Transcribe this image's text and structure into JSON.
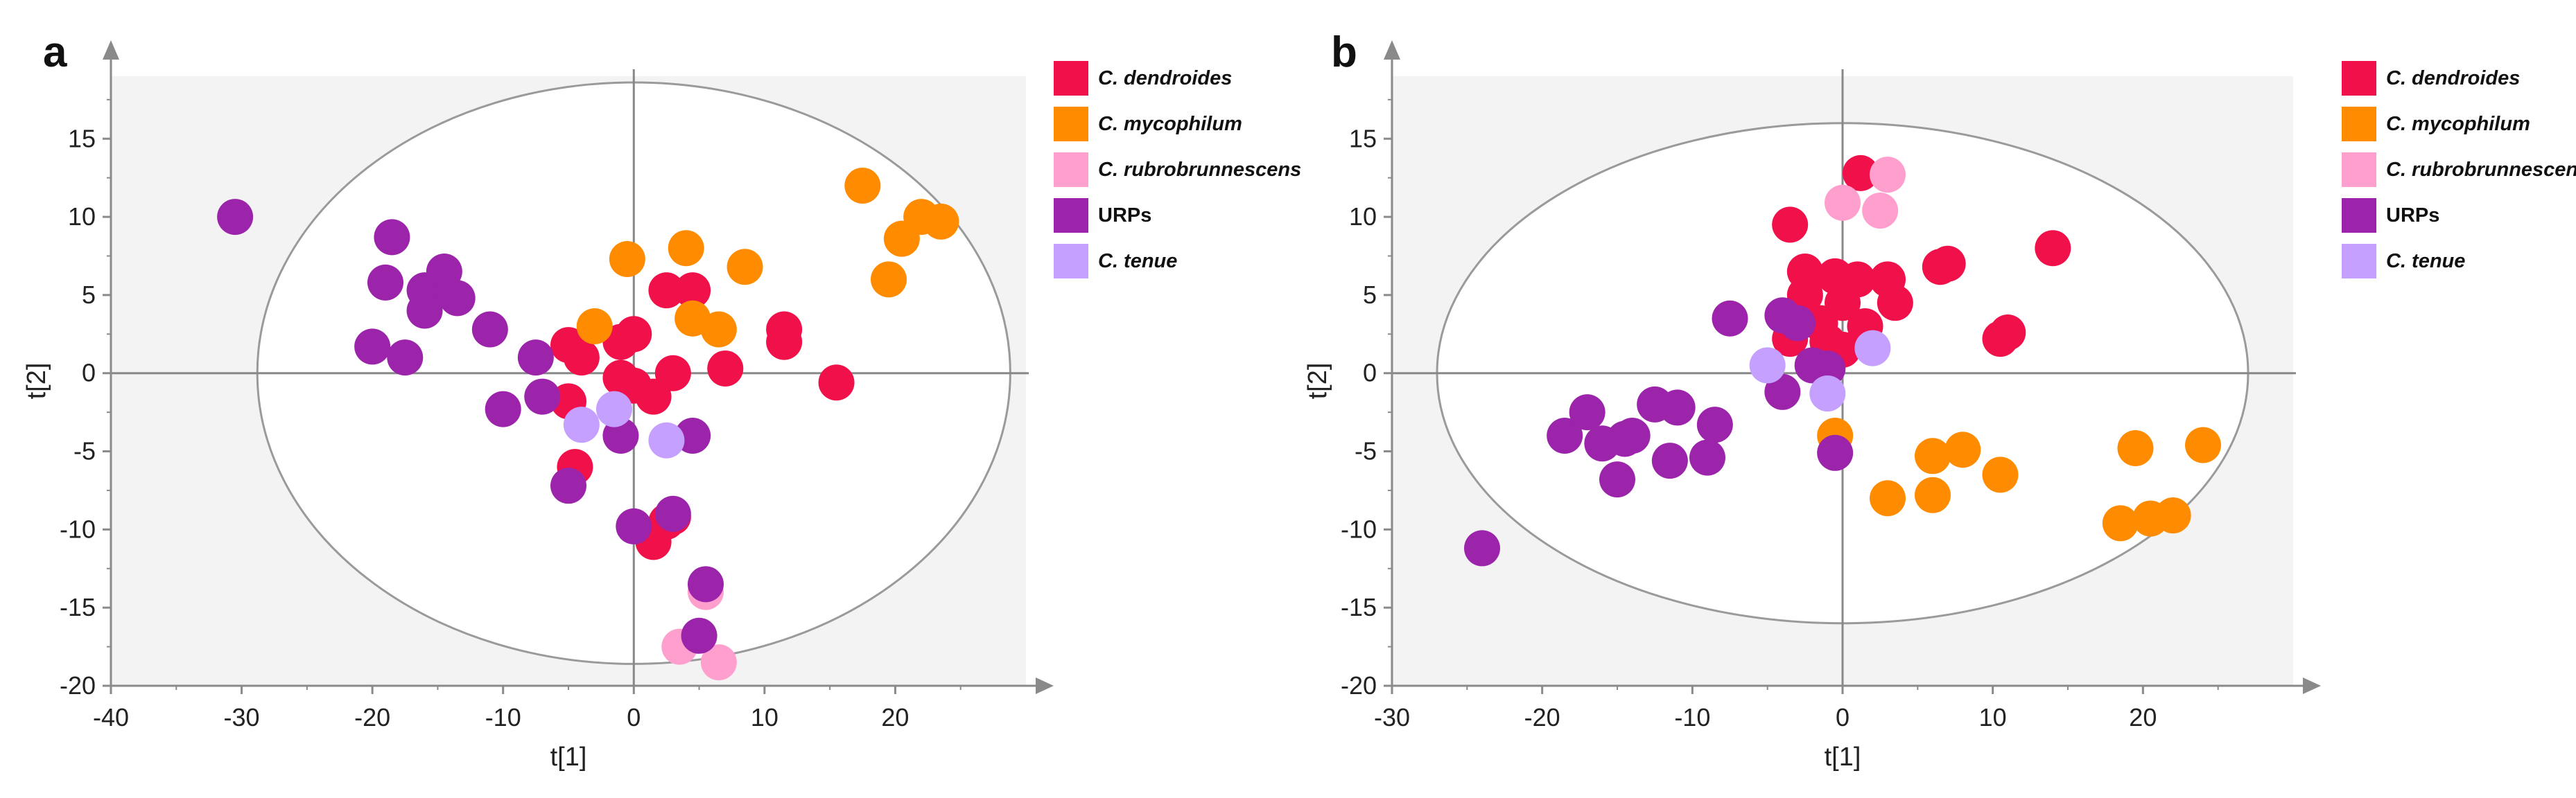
{
  "chart_data": [
    {
      "type": "scatter",
      "panel": "a",
      "xlabel": "t[1]",
      "ylabel": "t[2]",
      "xlim": [
        -40,
        30
      ],
      "ylim": [
        -20,
        19
      ],
      "xticks": [
        -40,
        -30,
        -20,
        -10,
        0,
        10,
        20
      ],
      "yticks": [
        -20,
        -15,
        -10,
        -5,
        0,
        5,
        10,
        15
      ],
      "ellipse": {
        "center": [
          0,
          0
        ],
        "rx": 28.8,
        "ry": 18.6
      },
      "series": [
        {
          "name": "C. dendroides",
          "color": "#f0104a",
          "points": [
            [
              -5,
              1.8
            ],
            [
              -4,
              1.0
            ],
            [
              -5,
              -1.8
            ],
            [
              -1,
              2
            ],
            [
              0,
              2.5
            ],
            [
              -1,
              -0.3
            ],
            [
              0,
              -0.8
            ],
            [
              2.5,
              5.3
            ],
            [
              4.5,
              5.3
            ],
            [
              3,
              0
            ],
            [
              1.5,
              -1.5
            ],
            [
              7,
              0.3
            ],
            [
              11.5,
              2.8
            ],
            [
              11.5,
              2.0
            ],
            [
              15.5,
              -0.6
            ],
            [
              -4.5,
              -6
            ],
            [
              2.5,
              -9.5
            ],
            [
              3,
              -9.2
            ],
            [
              1.5,
              -10.8
            ]
          ]
        },
        {
          "name": "C. mycophilum",
          "color": "#ff8c00",
          "points": [
            [
              -0.5,
              7.3
            ],
            [
              4,
              8
            ],
            [
              8.5,
              6.8
            ],
            [
              -3,
              3
            ],
            [
              4.5,
              3.5
            ],
            [
              6.5,
              2.8
            ],
            [
              17.5,
              12
            ],
            [
              20.5,
              8.6
            ],
            [
              22,
              10
            ],
            [
              23.5,
              9.7
            ],
            [
              19.5,
              6
            ]
          ]
        },
        {
          "name": "C. rubrobrunnescens",
          "color": "#ff9fce",
          "points": [
            [
              5.5,
              -14
            ],
            [
              3.5,
              -17.5
            ],
            [
              6.5,
              -18.5
            ]
          ]
        },
        {
          "name": "URPs",
          "color": "#9b24aa",
          "points": [
            [
              -30.5,
              10
            ],
            [
              -18.5,
              8.7
            ],
            [
              -19,
              5.8
            ],
            [
              -16,
              5.3
            ],
            [
              -14.5,
              6.5
            ],
            [
              -13.5,
              4.8
            ],
            [
              -16,
              4
            ],
            [
              -11,
              2.8
            ],
            [
              -20,
              1.7
            ],
            [
              -17.5,
              1
            ],
            [
              -7.5,
              1
            ],
            [
              -7,
              -1.5
            ],
            [
              -10,
              -2.3
            ],
            [
              -1,
              -4
            ],
            [
              4.5,
              -4
            ],
            [
              -5,
              -7.2
            ],
            [
              0,
              -9.8
            ],
            [
              3,
              -9
            ],
            [
              5.5,
              -13.5
            ],
            [
              5,
              -16.8
            ]
          ]
        },
        {
          "name": "C. tenue",
          "color": "#c5a0ff",
          "points": [
            [
              -4,
              -3.3
            ],
            [
              -1.5,
              -2.3
            ],
            [
              2.5,
              -4.3
            ]
          ]
        }
      ]
    },
    {
      "type": "scatter",
      "panel": "b",
      "xlabel": "t[1]",
      "ylabel": "t[2]",
      "xlim": [
        -30,
        30
      ],
      "ylim": [
        -20,
        19
      ],
      "xticks": [
        -30,
        -20,
        -10,
        0,
        10,
        20
      ],
      "yticks": [
        -20,
        -15,
        -10,
        -5,
        0,
        5,
        10,
        15
      ],
      "ellipse": {
        "center": [
          0,
          0
        ],
        "rx": 27.0,
        "ry": 16.0
      },
      "series": [
        {
          "name": "C. dendroides",
          "color": "#f0104a",
          "points": [
            [
              1.2,
              12.8
            ],
            [
              -3.5,
              9.5
            ],
            [
              -2.5,
              6.5
            ],
            [
              -0.5,
              6.2
            ],
            [
              1,
              6
            ],
            [
              -2.5,
              5
            ],
            [
              0,
              4.5
            ],
            [
              3,
              6
            ],
            [
              3.5,
              4.5
            ],
            [
              6.5,
              6.8
            ],
            [
              7,
              7
            ],
            [
              -1.5,
              3.2
            ],
            [
              1.5,
              3
            ],
            [
              -3.5,
              2.2
            ],
            [
              -1,
              2
            ],
            [
              0,
              1.5
            ],
            [
              10.5,
              2.2
            ],
            [
              11,
              2.6
            ],
            [
              14,
              8
            ]
          ]
        },
        {
          "name": "C. mycophilum",
          "color": "#ff8c00",
          "points": [
            [
              -0.5,
              -4
            ],
            [
              3,
              -8
            ],
            [
              6,
              -5.3
            ],
            [
              6,
              -7.8
            ],
            [
              8,
              -4.9
            ],
            [
              10.5,
              -6.5
            ],
            [
              19.5,
              -4.8
            ],
            [
              24,
              -4.6
            ],
            [
              18.5,
              -9.6
            ],
            [
              20.5,
              -9.3
            ],
            [
              22,
              -9.1
            ]
          ]
        },
        {
          "name": "C. rubrobrunnescens",
          "color": "#ff9fce",
          "points": [
            [
              0,
              10.9
            ],
            [
              2.5,
              10.4
            ],
            [
              3,
              12.7
            ]
          ]
        },
        {
          "name": "URPs",
          "color": "#9b24aa",
          "points": [
            [
              -24,
              -11.2
            ],
            [
              -18.5,
              -4
            ],
            [
              -17,
              -2.5
            ],
            [
              -16,
              -4.5
            ],
            [
              -15,
              -6.8
            ],
            [
              -14.5,
              -4.2
            ],
            [
              -14,
              -4
            ],
            [
              -12.5,
              -2
            ],
            [
              -11.5,
              -5.6
            ],
            [
              -11,
              -2.2
            ],
            [
              -9,
              -5.4
            ],
            [
              -8.5,
              -3.3
            ],
            [
              -7.5,
              3.5
            ],
            [
              -4,
              3.7
            ],
            [
              -3,
              3.2
            ],
            [
              -2,
              0.5
            ],
            [
              -1,
              0.3
            ],
            [
              -4,
              -1.2
            ],
            [
              -0.5,
              -5.1
            ]
          ]
        },
        {
          "name": "C. tenue",
          "color": "#c5a0ff",
          "points": [
            [
              -5,
              0.5
            ],
            [
              -1,
              -1.3
            ],
            [
              2,
              1.6
            ]
          ]
        }
      ]
    }
  ],
  "panels": [
    {
      "letter": "a"
    },
    {
      "letter": "b"
    }
  ],
  "legend": [
    {
      "label": "C. dendroides",
      "color": "#f0104a",
      "italic": true
    },
    {
      "label": "C. mycophilum",
      "color": "#ff8c00",
      "italic": true
    },
    {
      "label": "C. rubrobrunnescens",
      "color": "#ff9fce",
      "italic": true
    },
    {
      "label": "URPs",
      "color": "#9b24aa",
      "italic": false
    },
    {
      "label": "C. tenue",
      "color": "#c5a0ff",
      "italic": true
    }
  ],
  "colors": {
    "plot_background": "#f3f3f3",
    "axis": "#8a8a8a",
    "grid": "#888888"
  }
}
